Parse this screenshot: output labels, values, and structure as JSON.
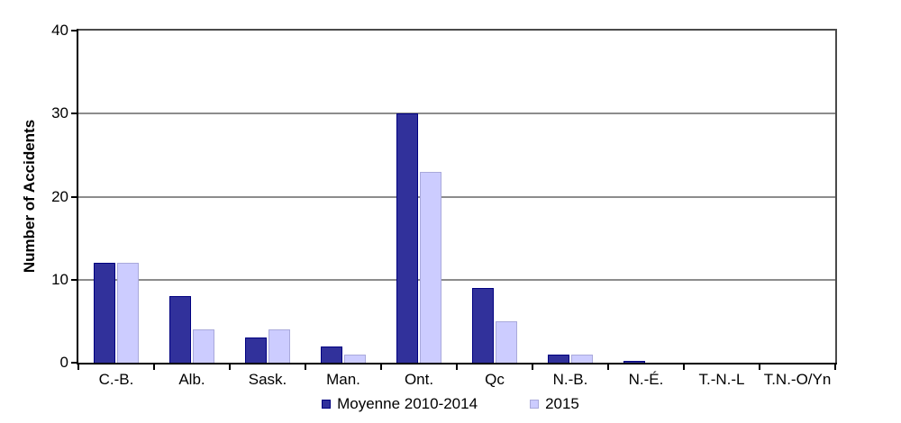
{
  "chart_data": {
    "type": "bar",
    "title": "",
    "ylabel": "Number of Accidents",
    "xlabel": "",
    "ylim": [
      0,
      40
    ],
    "yticks": [
      0,
      10,
      20,
      30,
      40
    ],
    "grid": true,
    "legend_position": "bottom",
    "categories": [
      "C.-B.",
      "Alb.",
      "Sask.",
      "Man.",
      "Ont.",
      "Qc",
      "N.-B.",
      "N.-É.",
      "T.-N.-L",
      "T.N.-O/Yn"
    ],
    "series": [
      {
        "name": "Moyenne 2010-2014",
        "fill": "#31319B",
        "border": "#000080",
        "values": [
          12,
          8,
          3,
          2,
          30,
          9,
          1,
          0.2,
          0,
          0
        ]
      },
      {
        "name": "2015",
        "fill": "#CCCCFF",
        "border": "#A9A9DB",
        "values": [
          12,
          4,
          4,
          1,
          23,
          5,
          1,
          0,
          0,
          0
        ]
      }
    ]
  },
  "colors": {
    "background": "#FFFFFF",
    "gridline": "#8C8C8C",
    "plot_border": "#4A4A4A",
    "axis": "#000000",
    "text": "#000000"
  }
}
